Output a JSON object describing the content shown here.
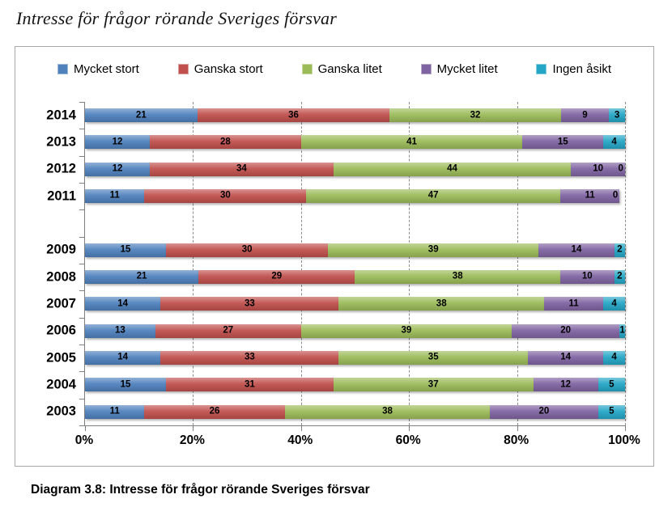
{
  "title": "Intresse för frågor rörande Sveriges försvar",
  "caption": "Diagram 3.8: Intresse för frågor rörande Sveriges försvar",
  "chart_data": {
    "type": "bar",
    "orientation": "horizontal",
    "stacked": true,
    "legend_position": "top",
    "grid": "vertical-dashed",
    "xlim": [
      0,
      100
    ],
    "x_ticks": [
      "0%",
      "20%",
      "40%",
      "60%",
      "80%",
      "100%"
    ],
    "series": [
      {
        "name": "Mycket stort",
        "color": "#4F81BD"
      },
      {
        "name": "Ganska stort",
        "color": "#C0504D"
      },
      {
        "name": "Ganska litet",
        "color": "#9BBB59"
      },
      {
        "name": "Mycket litet",
        "color": "#8064A2"
      },
      {
        "name": "Ingen åsikt",
        "color": "#24A6C6"
      }
    ],
    "rows": [
      {
        "year": "2014",
        "values": [
          21,
          36,
          32,
          9,
          3
        ]
      },
      {
        "year": "2013",
        "values": [
          12,
          28,
          41,
          15,
          4
        ]
      },
      {
        "year": "2012",
        "values": [
          12,
          34,
          44,
          10,
          0
        ]
      },
      {
        "year": "2011",
        "values": [
          11,
          30,
          47,
          11,
          0
        ]
      },
      {
        "year": "",
        "values": []
      },
      {
        "year": "2009",
        "values": [
          15,
          30,
          39,
          14,
          2
        ]
      },
      {
        "year": "2008",
        "values": [
          21,
          29,
          38,
          10,
          2
        ]
      },
      {
        "year": "2007",
        "values": [
          14,
          33,
          38,
          11,
          4
        ]
      },
      {
        "year": "2006",
        "values": [
          13,
          27,
          39,
          20,
          1
        ]
      },
      {
        "year": "2005",
        "values": [
          14,
          33,
          35,
          14,
          4
        ]
      },
      {
        "year": "2004",
        "values": [
          15,
          31,
          37,
          12,
          5
        ]
      },
      {
        "year": "2003",
        "values": [
          11,
          26,
          38,
          20,
          5
        ]
      }
    ]
  }
}
